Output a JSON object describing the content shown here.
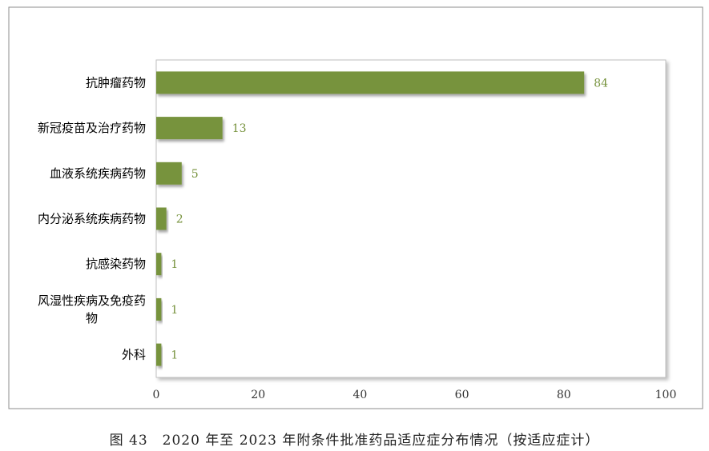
{
  "chart_data": {
    "type": "bar",
    "orientation": "horizontal",
    "categories": [
      "抗肿瘤药物",
      "新冠疫苗及治疗药物",
      "血液系统疾病药物",
      "内分泌系统疾病药物",
      "抗感染药物",
      "风湿性疾病及免疫药物",
      "外科"
    ],
    "values": [
      84,
      13,
      5,
      2,
      1,
      1,
      1
    ],
    "xlim": [
      0,
      100
    ],
    "xticks": [
      0,
      20,
      40,
      60,
      80,
      100
    ],
    "grid": false,
    "legend": "none",
    "bar_color": "#77933c",
    "label_color": "#76923c"
  },
  "caption": "图 43　2020 年至 2023 年附条件批准药品适应症分布情况（按适应症计）"
}
